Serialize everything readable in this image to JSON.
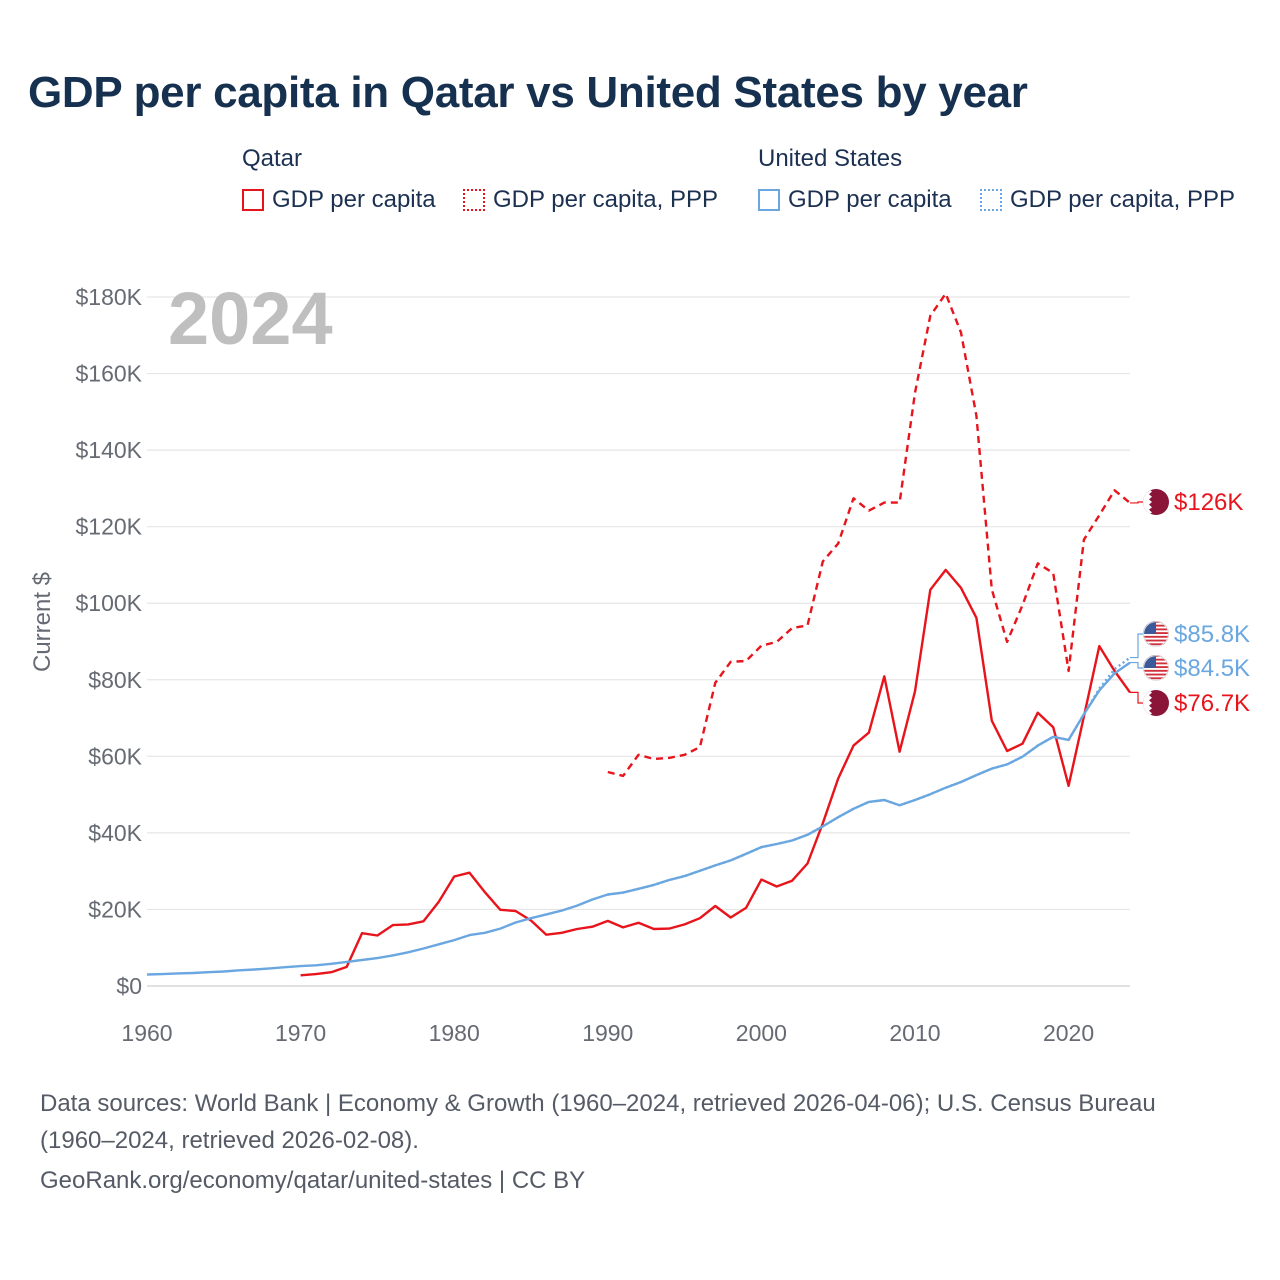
{
  "header": {
    "title": "GDP per capita in Qatar vs United States by year"
  },
  "legend": {
    "groups": [
      {
        "title": "Qatar",
        "items": [
          "GDP per capita",
          "GDP per capita, PPP"
        ]
      },
      {
        "title": "United States",
        "items": [
          "GDP per capita",
          "GDP per capita, PPP"
        ]
      }
    ]
  },
  "colors": {
    "qatar": "#e8141c",
    "us": "#6aa7e0",
    "grid": "#e6e6e6",
    "axis_text": "#666b73",
    "year_watermark": "#bfbfbf"
  },
  "chart_data": {
    "type": "line",
    "title": "GDP per capita in Qatar vs United States by year",
    "year_label": "2024",
    "ylabel": "Current $",
    "xlabel": "",
    "xlim": [
      1960,
      2024
    ],
    "ylim": [
      0,
      180000
    ],
    "x_ticks": [
      1960,
      1970,
      1980,
      1990,
      2000,
      2010,
      2020
    ],
    "y_ticks": [
      0,
      20000,
      40000,
      60000,
      80000,
      100000,
      120000,
      140000,
      160000,
      180000
    ],
    "y_tick_labels": [
      "$0",
      "$20K",
      "$40K",
      "$60K",
      "$80K",
      "$100K",
      "$120K",
      "$140K",
      "$160K",
      "$180K"
    ],
    "grid": true,
    "series": [
      {
        "name": "Qatar GDP per capita",
        "country": "Qatar",
        "style": "solid",
        "color": "#e8141c",
        "end_label": "$76.7K",
        "points": [
          [
            1970,
            2800
          ],
          [
            1971,
            3100
          ],
          [
            1972,
            3600
          ],
          [
            1973,
            5000
          ],
          [
            1974,
            13800
          ],
          [
            1975,
            13200
          ],
          [
            1976,
            15900
          ],
          [
            1977,
            16100
          ],
          [
            1978,
            16900
          ],
          [
            1979,
            22000
          ],
          [
            1980,
            28600
          ],
          [
            1981,
            29600
          ],
          [
            1982,
            24500
          ],
          [
            1983,
            19900
          ],
          [
            1984,
            19600
          ],
          [
            1985,
            17100
          ],
          [
            1986,
            13400
          ],
          [
            1987,
            13900
          ],
          [
            1988,
            14900
          ],
          [
            1989,
            15500
          ],
          [
            1990,
            17000
          ],
          [
            1991,
            15300
          ],
          [
            1992,
            16500
          ],
          [
            1993,
            14900
          ],
          [
            1994,
            15000
          ],
          [
            1995,
            16100
          ],
          [
            1996,
            17700
          ],
          [
            1997,
            20900
          ],
          [
            1998,
            17900
          ],
          [
            1999,
            20400
          ],
          [
            2000,
            27800
          ],
          [
            2001,
            26000
          ],
          [
            2002,
            27500
          ],
          [
            2003,
            32000
          ],
          [
            2004,
            42500
          ],
          [
            2005,
            54200
          ],
          [
            2006,
            62800
          ],
          [
            2007,
            66200
          ],
          [
            2008,
            80900
          ],
          [
            2009,
            61200
          ],
          [
            2010,
            77000
          ],
          [
            2011,
            103500
          ],
          [
            2012,
            108700
          ],
          [
            2013,
            104000
          ],
          [
            2014,
            96200
          ],
          [
            2015,
            69300
          ],
          [
            2016,
            61400
          ],
          [
            2017,
            63300
          ],
          [
            2018,
            71400
          ],
          [
            2019,
            67600
          ],
          [
            2020,
            52300
          ],
          [
            2021,
            70400
          ],
          [
            2022,
            88800
          ],
          [
            2023,
            82300
          ],
          [
            2024,
            76700
          ]
        ]
      },
      {
        "name": "Qatar GDP per capita, PPP",
        "country": "Qatar",
        "style": "dashed",
        "color": "#e8141c",
        "end_label": "$126K",
        "points": [
          [
            1990,
            55900
          ],
          [
            1991,
            54900
          ],
          [
            1992,
            60400
          ],
          [
            1993,
            59300
          ],
          [
            1994,
            59600
          ],
          [
            1995,
            60400
          ],
          [
            1996,
            62400
          ],
          [
            1997,
            79200
          ],
          [
            1998,
            84700
          ],
          [
            1999,
            84900
          ],
          [
            2000,
            88900
          ],
          [
            2001,
            89900
          ],
          [
            2002,
            93500
          ],
          [
            2003,
            94200
          ],
          [
            2004,
            110900
          ],
          [
            2005,
            115600
          ],
          [
            2006,
            127400
          ],
          [
            2007,
            124200
          ],
          [
            2008,
            126300
          ],
          [
            2009,
            126300
          ],
          [
            2010,
            155000
          ],
          [
            2011,
            175100
          ],
          [
            2012,
            180900
          ],
          [
            2013,
            170700
          ],
          [
            2014,
            149000
          ],
          [
            2015,
            103600
          ],
          [
            2016,
            89900
          ],
          [
            2017,
            99500
          ],
          [
            2018,
            110400
          ],
          [
            2019,
            107900
          ],
          [
            2020,
            82300
          ],
          [
            2021,
            116600
          ],
          [
            2022,
            123000
          ],
          [
            2023,
            129500
          ],
          [
            2024,
            126200
          ]
        ]
      },
      {
        "name": "United States GDP per capita",
        "country": "United States",
        "style": "solid",
        "color": "#6aa7e0",
        "end_label": "$84.5K",
        "points": [
          [
            1960,
            3000
          ],
          [
            1961,
            3100
          ],
          [
            1962,
            3300
          ],
          [
            1963,
            3400
          ],
          [
            1964,
            3600
          ],
          [
            1965,
            3800
          ],
          [
            1966,
            4100
          ],
          [
            1967,
            4300
          ],
          [
            1968,
            4600
          ],
          [
            1969,
            4900
          ],
          [
            1970,
            5200
          ],
          [
            1971,
            5400
          ],
          [
            1972,
            5800
          ],
          [
            1973,
            6300
          ],
          [
            1974,
            6800
          ],
          [
            1975,
            7300
          ],
          [
            1976,
            8000
          ],
          [
            1977,
            8800
          ],
          [
            1978,
            9800
          ],
          [
            1979,
            10900
          ],
          [
            1980,
            12000
          ],
          [
            1981,
            13300
          ],
          [
            1982,
            13900
          ],
          [
            1983,
            15000
          ],
          [
            1984,
            16600
          ],
          [
            1985,
            17700
          ],
          [
            1986,
            18700
          ],
          [
            1987,
            19700
          ],
          [
            1988,
            21000
          ],
          [
            1989,
            22600
          ],
          [
            1990,
            23900
          ],
          [
            1991,
            24400
          ],
          [
            1992,
            25400
          ],
          [
            1993,
            26400
          ],
          [
            1994,
            27700
          ],
          [
            1995,
            28700
          ],
          [
            1996,
            30100
          ],
          [
            1997,
            31500
          ],
          [
            1998,
            32800
          ],
          [
            1999,
            34500
          ],
          [
            2000,
            36300
          ],
          [
            2001,
            37100
          ],
          [
            2002,
            38000
          ],
          [
            2003,
            39500
          ],
          [
            2004,
            41700
          ],
          [
            2005,
            44100
          ],
          [
            2006,
            46300
          ],
          [
            2007,
            48100
          ],
          [
            2008,
            48600
          ],
          [
            2009,
            47200
          ],
          [
            2010,
            48600
          ],
          [
            2011,
            50100
          ],
          [
            2012,
            51800
          ],
          [
            2013,
            53300
          ],
          [
            2014,
            55100
          ],
          [
            2015,
            56800
          ],
          [
            2016,
            57900
          ],
          [
            2017,
            59900
          ],
          [
            2018,
            62800
          ],
          [
            2019,
            65100
          ],
          [
            2020,
            64300
          ],
          [
            2021,
            71000
          ],
          [
            2022,
            77200
          ],
          [
            2023,
            81700
          ],
          [
            2024,
            84500
          ]
        ]
      },
      {
        "name": "United States GDP per capita, PPP",
        "country": "United States",
        "style": "dotted",
        "color": "#6aa7e0",
        "end_label": "$85.8K",
        "points": [
          [
            1990,
            23900
          ],
          [
            1991,
            24400
          ],
          [
            1992,
            25400
          ],
          [
            1993,
            26400
          ],
          [
            1994,
            27700
          ],
          [
            1995,
            28700
          ],
          [
            1996,
            30100
          ],
          [
            1997,
            31500
          ],
          [
            1998,
            32800
          ],
          [
            1999,
            34500
          ],
          [
            2000,
            36300
          ],
          [
            2001,
            37100
          ],
          [
            2002,
            38000
          ],
          [
            2003,
            39500
          ],
          [
            2004,
            41700
          ],
          [
            2005,
            44100
          ],
          [
            2006,
            46300
          ],
          [
            2007,
            48100
          ],
          [
            2008,
            48600
          ],
          [
            2009,
            47200
          ],
          [
            2010,
            48600
          ],
          [
            2011,
            50100
          ],
          [
            2012,
            51800
          ],
          [
            2013,
            53300
          ],
          [
            2014,
            55100
          ],
          [
            2015,
            56800
          ],
          [
            2016,
            57900
          ],
          [
            2017,
            59900
          ],
          [
            2018,
            62800
          ],
          [
            2019,
            65100
          ],
          [
            2020,
            64300
          ],
          [
            2021,
            71000
          ],
          [
            2022,
            77700
          ],
          [
            2023,
            82800
          ],
          [
            2024,
            85800
          ]
        ]
      }
    ]
  },
  "footer": {
    "sources_line1": "Data sources: World Bank | Economy & Growth (1960–2024, retrieved 2026-04-06); U.S. Census Bureau",
    "sources_line2": "(1960–2024, retrieved 2026-02-08).",
    "attribution": "GeoRank.org/economy/qatar/united-states | CC BY"
  }
}
